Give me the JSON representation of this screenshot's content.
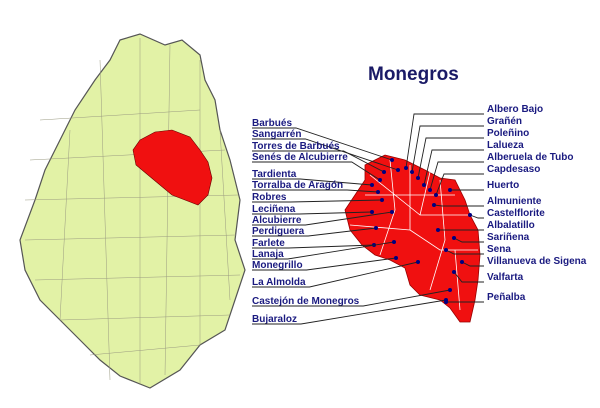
{
  "title": "Monegros",
  "labels_left": [
    "Barbués",
    "Sangarrén",
    "Torres de Barbués",
    "Senés de Alcubierre",
    "Tardienta",
    "Torralba de Aragón",
    "Robres",
    "Leciñena",
    "Alcubierre",
    "Perdiguera",
    "Farlete",
    "Lanaja",
    "Monegrillo",
    "La Almolda",
    "Castejón de Monegros",
    "Bujaraloz"
  ],
  "labels_right": [
    "Albero Bajo",
    "Grañén",
    "Poleñino",
    "Lalueza",
    "Alberuela de Tubo",
    "Capdesaso",
    "Huerto",
    "Almuniente",
    "Castelflorite",
    "Albalatillo",
    "Sariñena",
    "Sena",
    "Villanueva de Sigena",
    "Valfarta",
    "Peñalba"
  ]
}
